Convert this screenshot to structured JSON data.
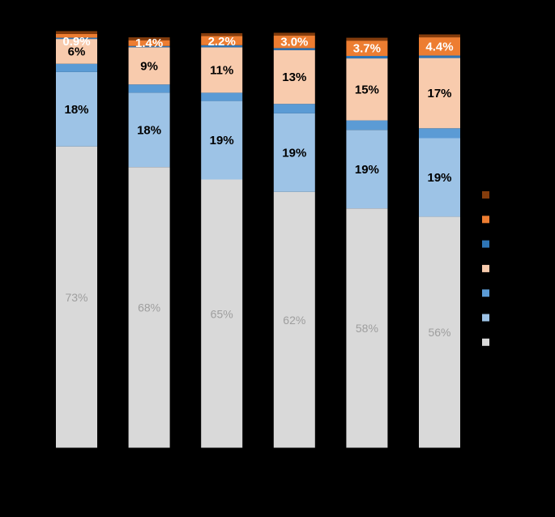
{
  "chart_data": {
    "type": "bar",
    "stacked": true,
    "ylim": [
      0,
      100
    ],
    "grid": false,
    "legend_position": "right",
    "series": [
      {
        "color": "#D9D9D9",
        "label_color": "#9E9E9E",
        "label_bold": false,
        "values": [
          73,
          68,
          65,
          62,
          58,
          56
        ],
        "labels": [
          "73%",
          "68%",
          "65%",
          "62%",
          "58%",
          "56%"
        ]
      },
      {
        "color": "#9DC3E6",
        "label_color": "#000000",
        "label_bold": true,
        "values": [
          18,
          18,
          19,
          19,
          19,
          19
        ],
        "labels": [
          "18%",
          "18%",
          "19%",
          "19%",
          "19%",
          "19%"
        ]
      },
      {
        "color": "#5B9BD5",
        "label_color": null,
        "label_bold": false,
        "values": [
          2.0,
          2.0,
          2.0,
          2.3,
          2.3,
          2.4
        ],
        "labels": []
      },
      {
        "color": "#F8CBAD",
        "label_color": "#000000",
        "label_bold": true,
        "values": [
          6,
          9,
          11,
          13,
          15,
          17
        ],
        "labels": [
          "6%",
          "9%",
          "11%",
          "13%",
          "15%",
          "17%"
        ]
      },
      {
        "color": "#2E75B6",
        "label_color": null,
        "label_bold": false,
        "values": [
          0.3,
          0.3,
          0.5,
          0.5,
          0.6,
          0.6
        ],
        "labels": []
      },
      {
        "color": "#ED7D31",
        "label_color": "#FFFFFF",
        "label_bold": true,
        "values": [
          0.9,
          1.4,
          2.2,
          3.0,
          3.7,
          4.4
        ],
        "labels": [
          "0.9%",
          "1.4%",
          "2.2%",
          "3.0%",
          "3.7%",
          "4.4%"
        ]
      },
      {
        "color": "#843C0C",
        "label_color": null,
        "label_bold": false,
        "values": [
          0.7,
          0.7,
          0.7,
          0.7,
          0.7,
          0.7
        ],
        "labels": []
      }
    ]
  }
}
